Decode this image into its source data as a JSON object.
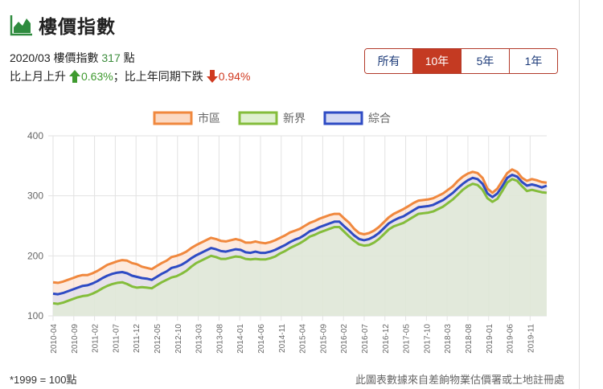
{
  "header": {
    "title": "樓價指數",
    "icon": "area-chart-icon"
  },
  "summary": {
    "period": "2020/03",
    "index_label": "樓價指數",
    "index_value": "317",
    "unit": "點",
    "mom_text": "比上月上升",
    "mom_value": "0.63%",
    "separator": "；",
    "yoy_text": "比上年同期下跌",
    "yoy_value": "0.94%"
  },
  "tabs": [
    {
      "label": "所有",
      "active": false
    },
    {
      "label": "10年",
      "active": true
    },
    {
      "label": "5年",
      "active": false
    },
    {
      "label": "1年",
      "active": false
    }
  ],
  "footer": {
    "note": "*1999 = 100點",
    "source": "此圖表數據來自差餉物業估價署或土地註冊處"
  },
  "chart_data": {
    "type": "area",
    "y_ticks": [
      100,
      200,
      300,
      400
    ],
    "ylim": [
      100,
      400
    ],
    "x_ticks": [
      "2010-04",
      "2010-09",
      "2011-02",
      "2011-07",
      "2011-12",
      "2012-05",
      "2012-10",
      "2013-03",
      "2013-08",
      "2014-01",
      "2014-06",
      "2014-11",
      "2015-04",
      "2015-09",
      "2016-02",
      "2016-07",
      "2016-12",
      "2017-05",
      "2017-10",
      "2018-03",
      "2018-08",
      "2019-01",
      "2019-06",
      "2019-11"
    ],
    "x_start": "2010-04",
    "x_end": "2020-03",
    "legend_position": "top",
    "grid": true,
    "series": [
      {
        "name": "市區",
        "color": "#f0883e",
        "fill": "#fbd9c3",
        "values": [
          156,
          155,
          157,
          160,
          163,
          166,
          168,
          168,
          171,
          175,
          180,
          185,
          188,
          191,
          193,
          192,
          188,
          186,
          182,
          180,
          178,
          183,
          188,
          192,
          198,
          200,
          203,
          207,
          213,
          218,
          222,
          226,
          230,
          228,
          225,
          224,
          226,
          228,
          226,
          222,
          222,
          224,
          222,
          221,
          223,
          226,
          230,
          234,
          239,
          242,
          245,
          250,
          255,
          258,
          262,
          265,
          268,
          270,
          270,
          262,
          255,
          245,
          238,
          236,
          238,
          242,
          248,
          256,
          264,
          270,
          274,
          278,
          283,
          288,
          292,
          293,
          294,
          296,
          300,
          304,
          310,
          316,
          325,
          332,
          337,
          340,
          338,
          330,
          312,
          305,
          312,
          325,
          338,
          344,
          340,
          330,
          325,
          328,
          326,
          323,
          322
        ]
      },
      {
        "name": "新界",
        "color": "#84bd3b",
        "fill": "#dff0cf",
        "values": [
          121,
          120,
          122,
          125,
          128,
          131,
          133,
          134,
          137,
          141,
          146,
          150,
          153,
          155,
          156,
          153,
          149,
          147,
          148,
          147,
          146,
          151,
          156,
          160,
          164,
          166,
          170,
          175,
          182,
          188,
          192,
          196,
          200,
          198,
          195,
          195,
          197,
          199,
          198,
          195,
          194,
          195,
          194,
          194,
          196,
          199,
          204,
          208,
          213,
          217,
          221,
          226,
          232,
          235,
          239,
          242,
          245,
          248,
          248,
          240,
          232,
          225,
          219,
          217,
          218,
          222,
          228,
          236,
          244,
          249,
          252,
          255,
          260,
          265,
          270,
          271,
          272,
          274,
          278,
          282,
          288,
          294,
          302,
          310,
          316,
          320,
          318,
          310,
          296,
          290,
          295,
          308,
          322,
          328,
          325,
          316,
          308,
          310,
          308,
          306,
          305
        ]
      },
      {
        "name": "綜合",
        "color": "#2e4bc4",
        "fill": "#d4d9f2",
        "values": [
          137,
          136,
          138,
          141,
          144,
          147,
          150,
          151,
          154,
          158,
          163,
          167,
          170,
          172,
          173,
          171,
          167,
          165,
          163,
          162,
          160,
          165,
          170,
          174,
          180,
          182,
          185,
          190,
          196,
          201,
          205,
          209,
          213,
          211,
          208,
          207,
          209,
          211,
          210,
          206,
          205,
          207,
          205,
          205,
          207,
          210,
          214,
          218,
          223,
          227,
          230,
          235,
          241,
          244,
          248,
          251,
          254,
          257,
          257,
          249,
          242,
          234,
          228,
          226,
          228,
          232,
          238,
          246,
          254,
          259,
          263,
          266,
          271,
          276,
          281,
          282,
          283,
          285,
          289,
          293,
          299,
          305,
          313,
          320,
          326,
          330,
          328,
          320,
          304,
          298,
          304,
          316,
          330,
          335,
          332,
          323,
          317,
          319,
          317,
          314,
          317
        ]
      }
    ]
  }
}
